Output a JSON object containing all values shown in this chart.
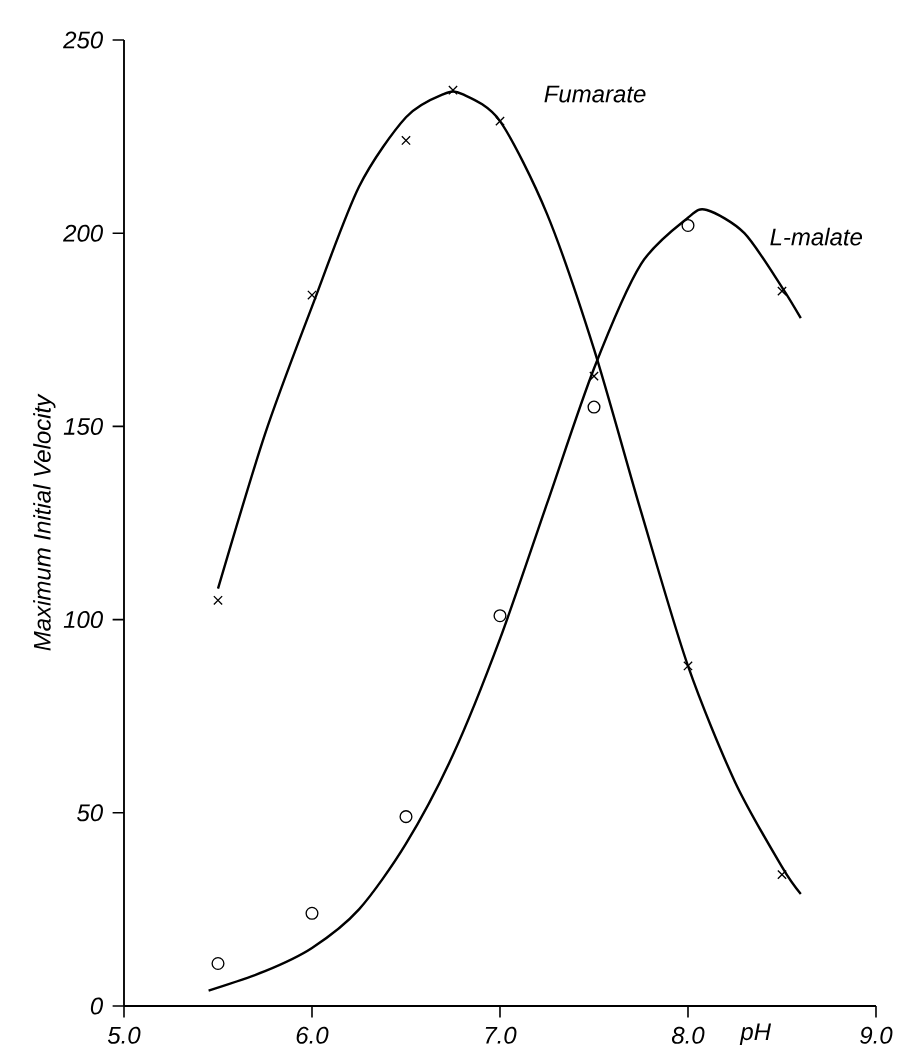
{
  "chart_data": {
    "type": "scatter",
    "xlabel": "pH",
    "ylabel": "Maximum Initial  Velocity",
    "xlim": [
      5.0,
      9.0
    ],
    "ylim": [
      0,
      250
    ],
    "xticks": [
      {
        "value": 5.0,
        "label": "5.0"
      },
      {
        "value": 6.0,
        "label": "6.0"
      },
      {
        "value": 7.0,
        "label": "7.0"
      },
      {
        "value": 8.0,
        "label": "8.0"
      },
      {
        "value": 9.0,
        "label": "9.0"
      }
    ],
    "yticks": [
      0,
      50,
      100,
      150,
      200,
      250
    ],
    "grid": false,
    "legend": false,
    "series": [
      {
        "name": "Fumarate",
        "type": "line",
        "marker": "none",
        "line_style": "solid",
        "color": "#000000",
        "x": [
          5.5,
          5.75,
          6.0,
          6.25,
          6.5,
          6.7,
          6.8,
          7.0,
          7.25,
          7.5,
          7.75,
          8.0,
          8.25,
          8.5,
          8.6
        ],
        "values": [
          108,
          148,
          181,
          212,
          230,
          236,
          236,
          229,
          205,
          170,
          128,
          88,
          58,
          36,
          29
        ]
      },
      {
        "name": "L-malate",
        "type": "line",
        "marker": "none",
        "line_style": "solid",
        "color": "#000000",
        "x": [
          5.45,
          5.75,
          6.0,
          6.25,
          6.5,
          6.75,
          7.0,
          7.25,
          7.5,
          7.75,
          8.0,
          8.1,
          8.3,
          8.5,
          8.6
        ],
        "values": [
          4,
          9,
          15,
          25,
          42,
          65,
          95,
          130,
          165,
          192,
          204,
          206,
          200,
          186,
          178
        ]
      },
      {
        "marker": "cross",
        "color": "#000000",
        "x": [
          5.5,
          6.0,
          6.5,
          6.75,
          7.0,
          7.5,
          8.0,
          8.5,
          8.5
        ],
        "values": [
          105,
          184,
          224,
          237,
          229,
          163,
          88,
          34,
          185
        ]
      },
      {
        "marker": "circle",
        "color": "#000000",
        "x": [
          5.5,
          6.0,
          6.5,
          7.0,
          7.5,
          8.0
        ],
        "values": [
          11,
          24,
          49,
          101,
          155,
          202
        ]
      }
    ]
  }
}
